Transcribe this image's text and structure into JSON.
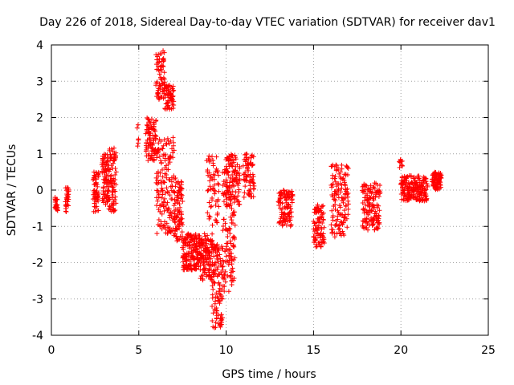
{
  "chart_data": {
    "type": "scatter",
    "title": "Day 226 of 2018, Sidereal Day-to-day VTEC variation (SDTVAR) for receiver dav1",
    "xlabel": "GPS time / hours",
    "ylabel": "SDTVAR / TECUs",
    "xlim": [
      0,
      25
    ],
    "ylim": [
      -4,
      4
    ],
    "xticks": [
      0,
      5,
      10,
      15,
      20,
      25
    ],
    "yticks": [
      -4,
      -3,
      -2,
      -1,
      0,
      1,
      2,
      3,
      4
    ],
    "grid": true,
    "marker": "plus",
    "series": [
      {
        "name": "SDTVAR",
        "color": "#ff0000",
        "segments": [
          {
            "x0": 0.2,
            "x1": 0.35,
            "y0": [
              -0.6,
              -0.2
            ],
            "n": 25
          },
          {
            "x0": 0.8,
            "x1": 1.0,
            "y0": [
              -0.6,
              0.1
            ],
            "n": 30
          },
          {
            "x0": 2.4,
            "x1": 2.7,
            "y0": [
              -0.6,
              0.5
            ],
            "n": 60
          },
          {
            "x0": 2.9,
            "x1": 3.3,
            "y0": [
              -0.4,
              1.0
            ],
            "n": 80
          },
          {
            "x0": 3.3,
            "x1": 3.7,
            "y0": [
              -0.6,
              1.2
            ],
            "n": 80
          },
          {
            "x0": 4.9,
            "x1": 5.0,
            "y0": [
              1.2,
              1.8
            ],
            "n": 6
          },
          {
            "x0": 5.4,
            "x1": 6.0,
            "y0": [
              0.8,
              2.0
            ],
            "n": 90
          },
          {
            "x0": 6.0,
            "x1": 6.5,
            "y0": [
              2.5,
              3.9
            ],
            "n": 70
          },
          {
            "x0": 6.5,
            "x1": 7.0,
            "y0": [
              2.2,
              2.9
            ],
            "n": 60
          },
          {
            "x0": 6.0,
            "x1": 7.0,
            "y0": [
              -1.2,
              1.5
            ],
            "n": 150
          },
          {
            "x0": 7.0,
            "x1": 7.5,
            "y0": [
              -1.4,
              0.4
            ],
            "n": 90
          },
          {
            "x0": 7.5,
            "x1": 8.5,
            "y0": [
              -2.2,
              -1.2
            ],
            "n": 170
          },
          {
            "x0": 8.5,
            "x1": 9.2,
            "y0": [
              -2.5,
              -1.2
            ],
            "n": 120
          },
          {
            "x0": 9.2,
            "x1": 9.8,
            "y0": [
              -3.8,
              -1.5
            ],
            "n": 120
          },
          {
            "x0": 9.8,
            "x1": 10.5,
            "y0": [
              -2.8,
              0.6
            ],
            "n": 130
          },
          {
            "x0": 8.9,
            "x1": 9.6,
            "y0": [
              -1.0,
              1.0
            ],
            "n": 60
          },
          {
            "x0": 10.0,
            "x1": 10.8,
            "y0": [
              -0.4,
              1.0
            ],
            "n": 90
          },
          {
            "x0": 11.0,
            "x1": 11.6,
            "y0": [
              -0.2,
              1.0
            ],
            "n": 70
          },
          {
            "x0": 13.0,
            "x1": 13.8,
            "y0": [
              -1.0,
              0.0
            ],
            "n": 110
          },
          {
            "x0": 15.0,
            "x1": 15.6,
            "y0": [
              -1.6,
              -0.4
            ],
            "n": 90
          },
          {
            "x0": 16.0,
            "x1": 17.0,
            "y0": [
              -1.3,
              0.7
            ],
            "n": 140
          },
          {
            "x0": 17.8,
            "x1": 18.8,
            "y0": [
              -1.1,
              0.2
            ],
            "n": 140
          },
          {
            "x0": 19.9,
            "x1": 20.1,
            "y0": [
              0.6,
              0.9
            ],
            "n": 10
          },
          {
            "x0": 20.0,
            "x1": 21.5,
            "y0": [
              -0.3,
              0.4
            ],
            "n": 200
          },
          {
            "x0": 21.8,
            "x1": 22.3,
            "y0": [
              0.0,
              0.5
            ],
            "n": 80
          }
        ]
      }
    ]
  }
}
